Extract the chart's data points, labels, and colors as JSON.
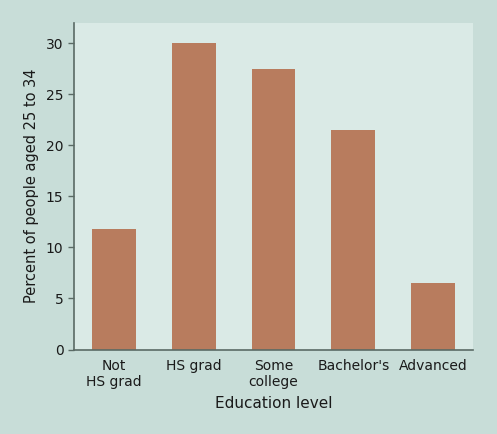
{
  "categories": [
    "Not\nHS grad",
    "HS grad",
    "Some\ncollege",
    "Bachelor's",
    "Advanced"
  ],
  "values": [
    11.8,
    30.0,
    27.5,
    21.5,
    6.5
  ],
  "bar_color": "#b87c5e",
  "bar_edge_color": "none",
  "outer_background": "#c8ddd8",
  "inner_background": "#daeae6",
  "xlabel": "Education level",
  "ylabel": "Percent of people aged 25 to 34",
  "ylim": [
    0,
    32
  ],
  "yticks": [
    0,
    5,
    10,
    15,
    20,
    25,
    30
  ],
  "xlabel_fontsize": 11,
  "ylabel_fontsize": 10.5,
  "tick_fontsize": 10,
  "bar_width": 0.55,
  "spine_color": "#5a6a65",
  "spine_linewidth": 1.2,
  "label_color": "#1a1a1a"
}
